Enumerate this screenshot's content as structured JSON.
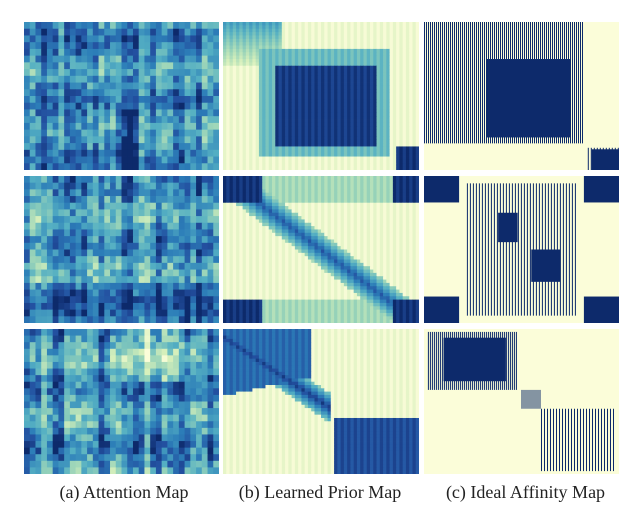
{
  "figure": {
    "columns": [
      {
        "key": "attention",
        "caption": "(a) Attention Map"
      },
      {
        "key": "prior",
        "caption": "(b) Learned Prior Map"
      },
      {
        "key": "affinity",
        "caption": "(c) Ideal Affinity Map"
      }
    ],
    "rows": 3,
    "colors": {
      "dark_navy": "#0d2a6b",
      "blue": "#2c5fa8",
      "teal": "#41a3c4",
      "light": "#c9ebd6",
      "cream": "#fbfdd9"
    }
  }
}
